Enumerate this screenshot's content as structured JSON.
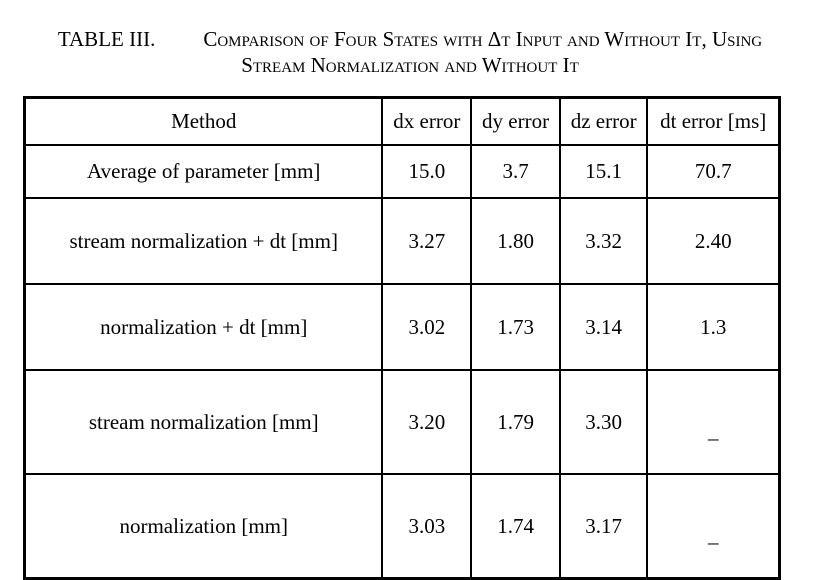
{
  "caption": {
    "label": "TABLE III.",
    "text": "Comparison of Four States with Δt Input and Without It, Using Stream Normalization and Without It"
  },
  "table": {
    "header": [
      "Method",
      "dx error",
      "dy error",
      "dz error",
      "dt error [ms]"
    ],
    "rows": [
      [
        "Average of parameter [mm]",
        "15.0",
        "3.7",
        "15.1",
        "70.7"
      ],
      [
        "stream normalization + dt [mm]",
        "3.27",
        "1.80",
        "3.32",
        "2.40"
      ],
      [
        "normalization + dt [mm]",
        "3.02",
        "1.73",
        "3.14",
        "1.3"
      ],
      [
        "stream normalization [mm]",
        "3.20",
        "1.79",
        "3.30",
        "_"
      ],
      [
        "normalization [mm]",
        "3.03",
        "1.74",
        "3.17",
        "_"
      ]
    ]
  }
}
